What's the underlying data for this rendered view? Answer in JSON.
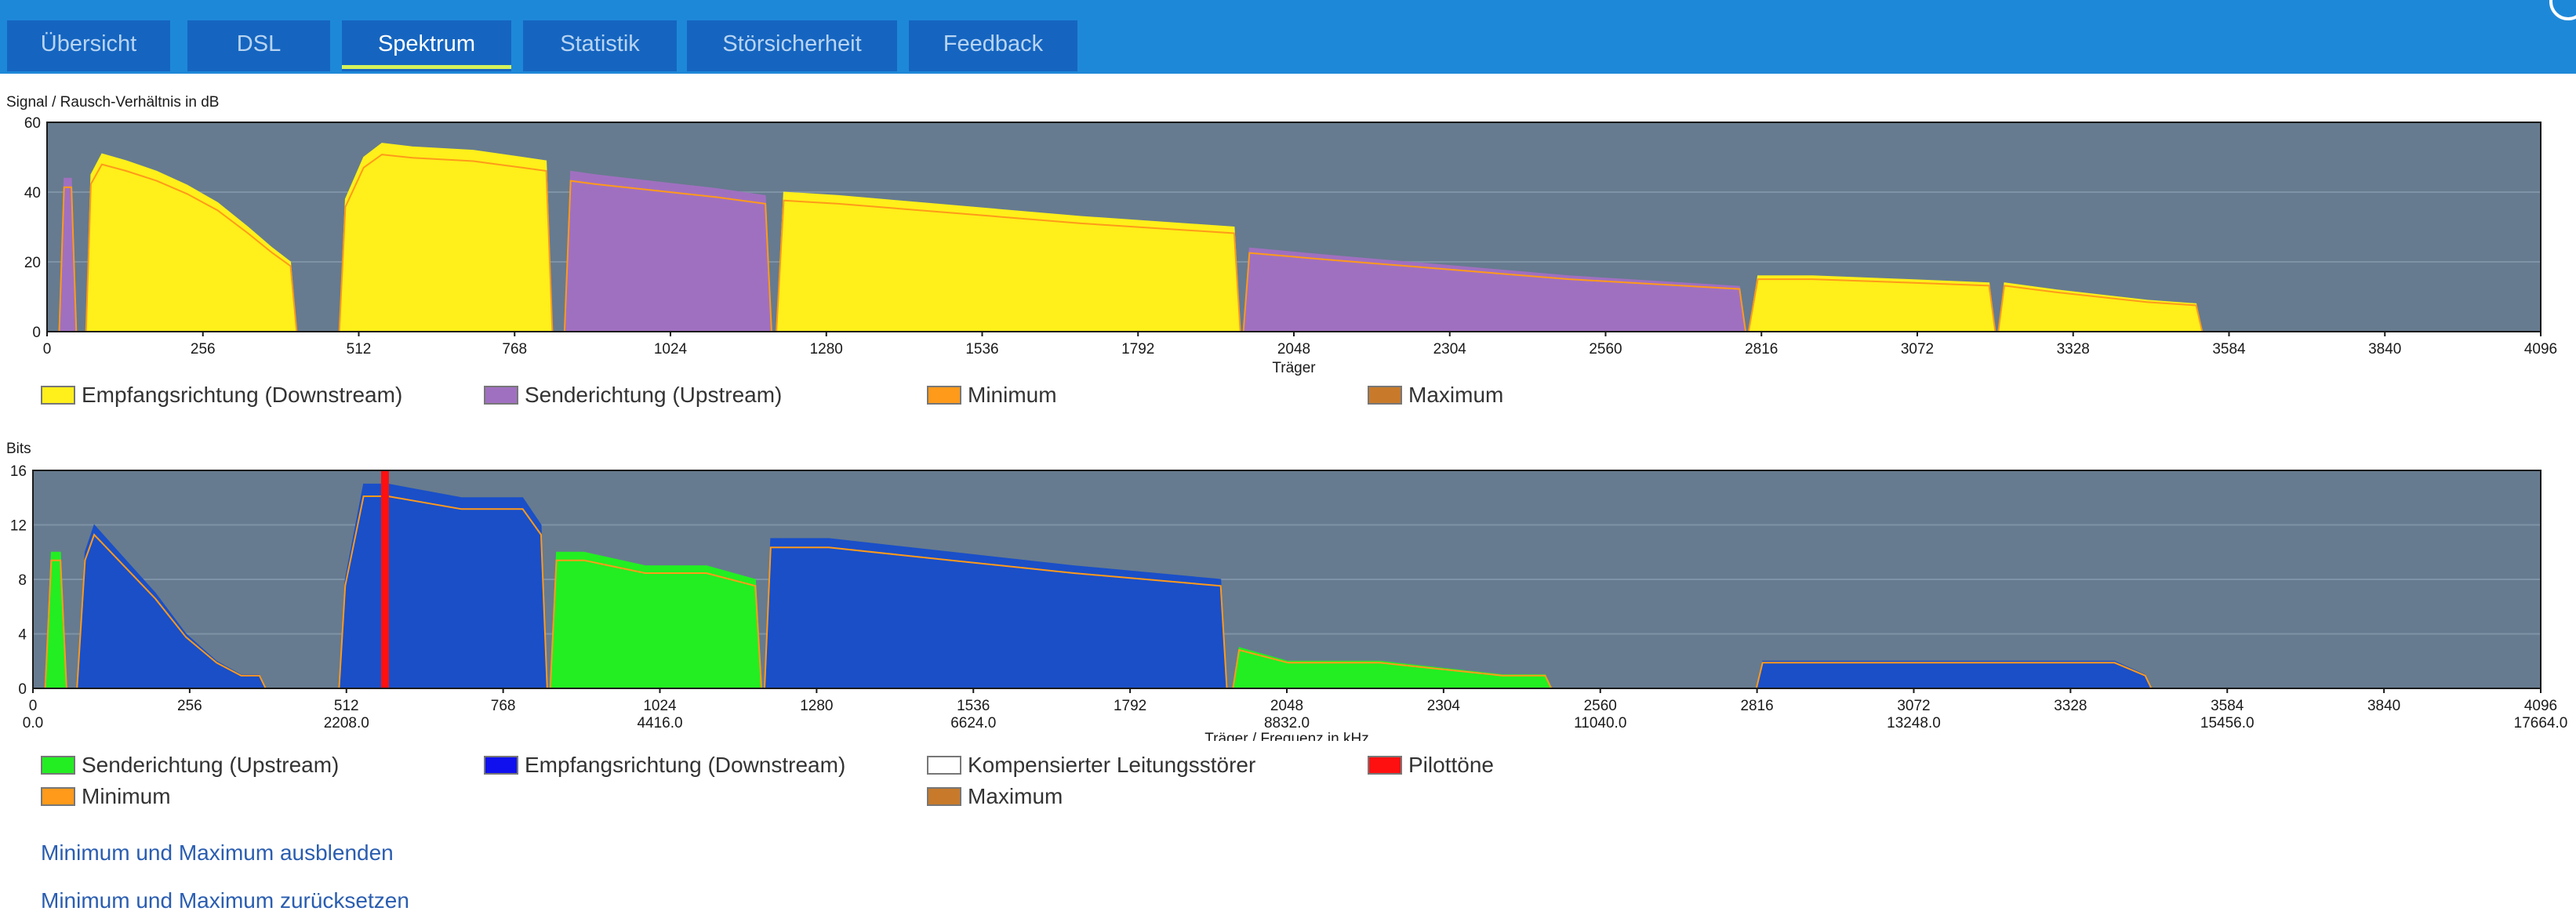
{
  "tabs": [
    {
      "label": "Übersicht",
      "active": false
    },
    {
      "label": "DSL",
      "active": false
    },
    {
      "label": "Spektrum",
      "active": true
    },
    {
      "label": "Statistik",
      "active": false
    },
    {
      "label": "Störsicherheit",
      "active": false
    },
    {
      "label": "Feedback",
      "active": false
    }
  ],
  "icons": {
    "help": "help-icon"
  },
  "chart1": {
    "ylabel": "Signal / Rausch-Verhältnis in dB",
    "xlabel": "Träger",
    "yticks": [
      "0",
      "20",
      "40",
      "60"
    ],
    "xticks": [
      "0",
      "256",
      "512",
      "768",
      "1024",
      "1280",
      "1536",
      "1792",
      "2048",
      "2304",
      "2560",
      "2816",
      "3072",
      "3328",
      "3584",
      "3840",
      "4096"
    ],
    "legend": [
      {
        "label": "Empfangsrichtung (Downstream)",
        "color": "#ffef1a"
      },
      {
        "label": "Senderichtung (Upstream)",
        "color": "#a070c0"
      },
      {
        "label": "Minimum",
        "color": "#ff9a1a"
      },
      {
        "label": "Maximum",
        "color": "#c87a2a"
      }
    ]
  },
  "chart2": {
    "ylabel": "Bits",
    "xlabel": "Träger / Frequenz in kHz",
    "yticks": [
      "0",
      "4",
      "8",
      "12",
      "16"
    ],
    "xticks": [
      "0",
      "256",
      "512",
      "768",
      "1024",
      "1280",
      "1536",
      "1792",
      "2048",
      "2304",
      "2560",
      "2816",
      "3072",
      "3328",
      "3584",
      "3840",
      "4096"
    ],
    "xticks2": [
      "0.0",
      "2208.0",
      "4416.0",
      "6624.0",
      "8832.0",
      "11040.0",
      "13248.0",
      "15456.0",
      "17664.0"
    ],
    "legend": [
      {
        "label": "Senderichtung (Upstream)",
        "color": "#22ee22"
      },
      {
        "label": "Empfangsrichtung (Downstream)",
        "color": "#1010ee"
      },
      {
        "label": "Kompensierter Leitungsstörer",
        "color": "#ffffff"
      },
      {
        "label": "Pilottöne",
        "color": "#ff1010"
      },
      {
        "label": "Minimum",
        "color": "#ff9a1a"
      },
      {
        "label": "Maximum",
        "color": "#c87a2a"
      }
    ]
  },
  "links": {
    "hide_minmax": "Minimum und Maximum ausblenden",
    "reset_minmax": "Minimum und Maximum zurücksetzen"
  },
  "chart_data": [
    {
      "type": "area",
      "title": "",
      "xlabel": "Träger",
      "ylabel": "Signal / Rausch-Verhältnis in dB",
      "xlim": [
        0,
        4096
      ],
      "ylim": [
        0,
        60
      ],
      "grid": true,
      "series": [
        {
          "name": "Empfangsrichtung (Downstream)",
          "color": "#ffef1a",
          "x": [
            64,
            72,
            90,
            130,
            180,
            230,
            280,
            330,
            370,
            400,
            410
          ],
          "y": [
            0,
            45,
            51,
            49,
            46,
            42,
            37,
            30,
            24,
            20,
            0
          ]
        },
        {
          "name": "Empfangsrichtung (Downstream)",
          "color": "#ffef1a",
          "x": [
            480,
            490,
            520,
            550,
            600,
            700,
            780,
            820,
            830
          ],
          "y": [
            0,
            38,
            50,
            54,
            53,
            52,
            50,
            49,
            0
          ]
        },
        {
          "name": "Senderichtung (Upstream)",
          "color": "#a070c0",
          "x": [
            850,
            860,
            900,
            1000,
            1100,
            1180,
            1190
          ],
          "y": [
            0,
            46,
            45,
            43,
            41,
            39,
            0
          ]
        },
        {
          "name": "Empfangsrichtung (Downstream)",
          "color": "#ffef1a",
          "x": [
            1198,
            1210,
            1300,
            1500,
            1700,
            1950,
            1960
          ],
          "y": [
            0,
            40,
            39,
            36,
            33,
            30,
            0
          ]
        },
        {
          "name": "Senderichtung (Upstream)",
          "color": "#a070c0",
          "x": [
            1965,
            1975,
            2100,
            2300,
            2500,
            2780,
            2790
          ],
          "y": [
            0,
            24,
            22,
            19,
            16,
            13,
            0
          ]
        },
        {
          "name": "Empfangsrichtung (Downstream)",
          "color": "#ffef1a",
          "x": [
            2795,
            2810,
            2900,
            3050,
            3190,
            3200
          ],
          "y": [
            0,
            16,
            16,
            15,
            14,
            0
          ]
        },
        {
          "name": "Empfangsrichtung (Downstream)",
          "color": "#ffef1a",
          "x": [
            3205,
            3215,
            3300,
            3450,
            3530,
            3540
          ],
          "y": [
            0,
            14,
            12,
            9,
            8,
            0
          ]
        },
        {
          "name": "Senderichtung (Upstream)",
          "color": "#a070c0",
          "x": [
            20,
            28,
            40,
            48
          ],
          "y": [
            0,
            44,
            44,
            0
          ]
        }
      ]
    },
    {
      "type": "area",
      "title": "",
      "xlabel": "Träger / Frequenz in kHz",
      "ylabel": "Bits",
      "xlim": [
        0,
        4096
      ],
      "ylim": [
        0,
        16
      ],
      "grid": true,
      "series": [
        {
          "name": "Senderichtung (Upstream)",
          "color": "#22ee22",
          "x": [
            20,
            30,
            45,
            55
          ],
          "y": [
            0,
            10,
            10,
            0
          ]
        },
        {
          "name": "Empfangsrichtung (Downstream)",
          "color": "#1a4fc8",
          "x": [
            72,
            85,
            100,
            140,
            200,
            250,
            300,
            340,
            370,
            380
          ],
          "y": [
            0,
            10,
            12,
            10,
            7,
            4,
            2,
            1,
            1,
            0
          ]
        },
        {
          "name": "Empfangsrichtung (Downstream)",
          "color": "#1a4fc8",
          "x": [
            500,
            510,
            540,
            580,
            700,
            800,
            830,
            840
          ],
          "y": [
            0,
            8,
            15,
            15,
            14,
            14,
            12,
            0
          ]
        },
        {
          "name": "Senderichtung (Upstream)",
          "color": "#22ee22",
          "x": [
            845,
            855,
            900,
            1000,
            1100,
            1180,
            1190
          ],
          "y": [
            0,
            10,
            10,
            9,
            9,
            8,
            0
          ]
        },
        {
          "name": "Empfangsrichtung (Downstream)",
          "color": "#1a4fc8",
          "x": [
            1195,
            1205,
            1300,
            1500,
            1700,
            1940,
            1950
          ],
          "y": [
            0,
            11,
            11,
            10,
            9,
            8,
            0
          ]
        },
        {
          "name": "Senderichtung (Upstream)",
          "color": "#22ee22",
          "x": [
            1960,
            1970,
            2050,
            2200,
            2400,
            2470,
            2480
          ],
          "y": [
            0,
            3,
            2,
            2,
            1,
            1,
            0
          ]
        },
        {
          "name": "Empfangsrichtung (Downstream)",
          "color": "#1a4fc8",
          "x": [
            2815,
            2825,
            3000,
            3200,
            3400,
            3450,
            3460
          ],
          "y": [
            0,
            2,
            2,
            2,
            2,
            1,
            0
          ]
        },
        {
          "name": "Pilottöne",
          "color": "#ff1010",
          "x": [
            575
          ],
          "y": [
            16
          ]
        }
      ]
    }
  ]
}
